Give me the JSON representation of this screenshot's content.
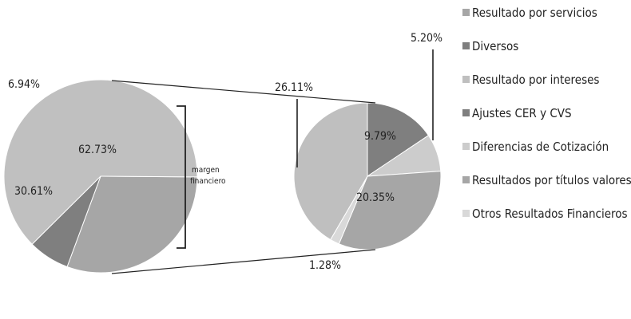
{
  "chart_data": {
    "type": "pie",
    "title": "",
    "pies": [
      {
        "name": "",
        "slices": [
          {
            "label": "Resultado por servicios",
            "value": 30.61,
            "display": "30.61%",
            "color": "#a6a6a6"
          },
          {
            "label": "Diversos",
            "value": 6.94,
            "display": "6.94%",
            "color": "#7f7f7f"
          },
          {
            "label": "margen financiero",
            "value": 62.73,
            "display": "62.73%",
            "color": "#c0c0c0"
          }
        ]
      },
      {
        "name": "margen financiero",
        "slices": [
          {
            "label": "Ajustes CER y CVS",
            "value": 9.79,
            "display": "9.79%",
            "color": "#7f7f7f"
          },
          {
            "label": "Diferencias de Cotización",
            "value": 5.2,
            "display": "5.20%",
            "color": "#cccccc"
          },
          {
            "label": "Resultados por títulos valores",
            "value": 20.35,
            "display": "20.35%",
            "color": "#a6a6a6"
          },
          {
            "label": "Otros Resultados Financieros",
            "value": 1.28,
            "display": "1.28%",
            "color": "#d9d9d9"
          },
          {
            "label": "Resultado por intereses",
            "value": 26.11,
            "display": "26.11%",
            "color": "#bfbfbf"
          }
        ]
      }
    ],
    "bracket_label": "margen\nfinanciero",
    "legend": {
      "placement": "right",
      "items": [
        {
          "label": "Resultado por servicios",
          "color": "#a6a6a6"
        },
        {
          "label": "Diversos",
          "color": "#7f7f7f"
        },
        {
          "label": "Resultado por intereses",
          "color": "#bfbfbf"
        },
        {
          "label": "Ajustes CER y CVS",
          "color": "#7f7f7f"
        },
        {
          "label": "Diferencias de Cotización",
          "color": "#cccccc"
        },
        {
          "label": "Resultados por títulos valores",
          "color": "#a6a6a6"
        },
        {
          "label": "Otros Resultados Financieros",
          "color": "#d9d9d9"
        }
      ]
    }
  }
}
